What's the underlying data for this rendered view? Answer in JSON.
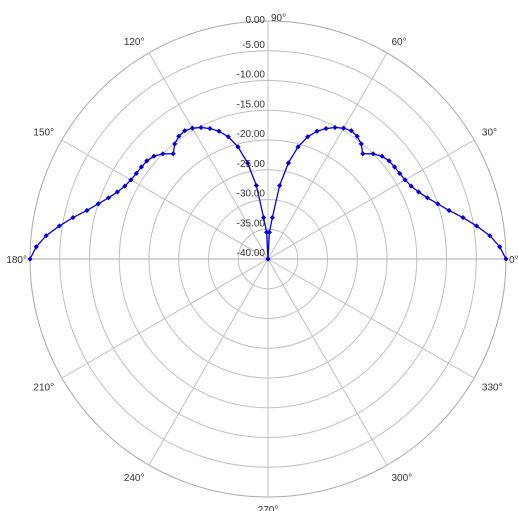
{
  "chart_data": {
    "type": "line",
    "subtype": "polar",
    "title": "",
    "angle_unit": "degrees",
    "angle_ticks": [
      0,
      30,
      60,
      90,
      120,
      150,
      180,
      210,
      240,
      270,
      300,
      330
    ],
    "angle_tick_labels": [
      "0°",
      "30°",
      "60°",
      "90°",
      "120°",
      "150°",
      "180°",
      "210°",
      "240°",
      "270°",
      "300°",
      "330°"
    ],
    "radial_range": [
      -40,
      0
    ],
    "radial_ticks": [
      0,
      -5,
      -10,
      -15,
      -20,
      -25,
      -30,
      -35,
      -40
    ],
    "radial_tick_labels": [
      "0.00",
      "-5.00",
      "-10.00",
      "-15.00",
      "-20.00",
      "-25.00",
      "-30.00",
      "-35.00",
      "-40.00"
    ],
    "radial_label_angle": 90,
    "grid": true,
    "legend": "none",
    "series": [
      {
        "color": "#0000e0",
        "marker": "diamond",
        "angles": [
          0,
          3,
          6,
          9,
          12,
          15,
          18,
          21,
          24,
          27,
          30,
          33,
          36,
          39,
          42,
          45,
          48,
          51,
          54,
          57,
          60,
          63,
          66,
          69,
          72,
          75,
          78,
          81,
          84,
          87,
          90,
          93,
          96,
          99,
          102,
          105,
          108,
          111,
          114,
          117,
          120,
          123,
          126,
          129,
          132,
          135,
          138,
          141,
          144,
          147,
          150,
          153,
          156,
          159,
          162,
          165,
          168,
          171,
          174,
          177,
          180
        ],
        "values": [
          0.0,
          -1.0,
          -2.5,
          -4.5,
          -6.5,
          -8.5,
          -10.0,
          -11.3,
          -12.3,
          -13.0,
          -13.4,
          -13.6,
          -13.7,
          -13.8,
          -14.2,
          -15.0,
          -16.2,
          -15.1,
          -14.5,
          -14.3,
          -14.6,
          -15.2,
          -16.0,
          -17.0,
          -18.4,
          -20.5,
          -23.5,
          -27.5,
          -33.0,
          -35.5,
          -40.0,
          -35.5,
          -33.0,
          -27.5,
          -23.5,
          -20.5,
          -18.4,
          -17.0,
          -16.0,
          -15.2,
          -14.6,
          -14.3,
          -14.5,
          -15.1,
          -16.2,
          -15.0,
          -14.2,
          -13.8,
          -13.7,
          -13.6,
          -13.4,
          -13.0,
          -12.3,
          -11.3,
          -10.0,
          -8.5,
          -6.5,
          -4.5,
          -2.5,
          -1.0,
          0.0
        ]
      }
    ]
  }
}
